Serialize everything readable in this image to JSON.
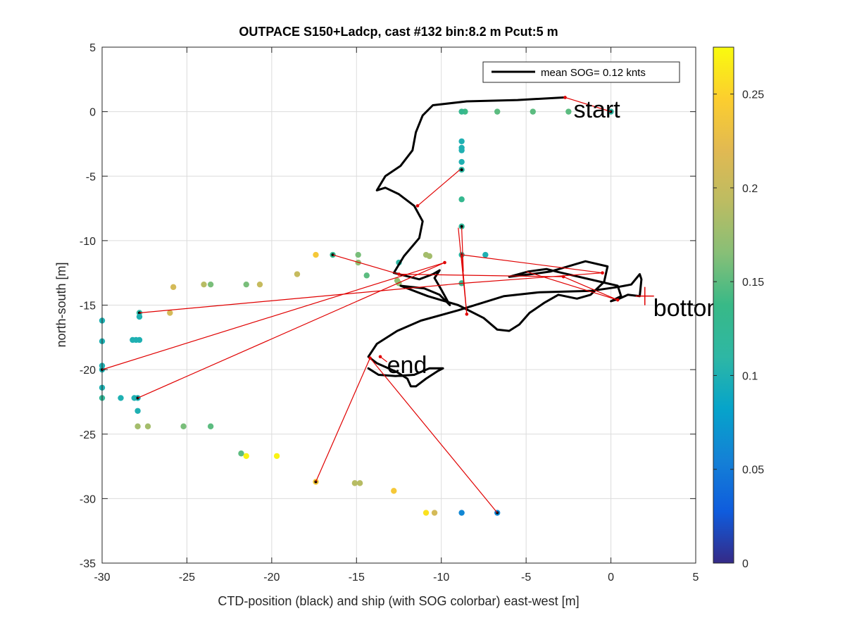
{
  "chart_data": {
    "type": "scatter",
    "title": "OUTPACE S150+Ladcp, cast #132 bin:8.2 m  Pcut:5 m",
    "xlabel": "CTD-position (black) and ship (with SOG colorbar) east-west [m]",
    "ylabel": "north-south [m]",
    "xlim": [
      -30,
      5
    ],
    "ylim": [
      -35,
      5
    ],
    "xticks": [
      "-30",
      "-25",
      "-20",
      "-15",
      "-10",
      "-5",
      "0",
      "5"
    ],
    "yticks": [
      "-35",
      "-30",
      "-25",
      "-20",
      "-15",
      "-10",
      "-5",
      "0",
      "5"
    ],
    "grid": true,
    "legend": {
      "placement": "top-right",
      "label": "mean SOG=  0.12 knts"
    },
    "colorbar": {
      "range": [
        0,
        0.275
      ],
      "ticks": [
        "0",
        "0.05",
        "0.1",
        "0.15",
        "0.2",
        "0.25"
      ],
      "colormap": "parula"
    },
    "annotations": [
      {
        "text": "start",
        "x": -2.2,
        "y": 0.2
      },
      {
        "text": "bottom",
        "x": 2.5,
        "y": -15.2
      },
      {
        "text": "end",
        "x": -13.2,
        "y": -19.6
      }
    ],
    "ctd_track": [
      [
        -2.8,
        1.1
      ],
      [
        -5.5,
        0.9
      ],
      [
        -8.5,
        0.8
      ],
      [
        -10.5,
        0.5
      ],
      [
        -11.1,
        -0.3
      ],
      [
        -11.5,
        -1.6
      ],
      [
        -11.7,
        -3.0
      ],
      [
        -12.4,
        -4.2
      ],
      [
        -13.3,
        -5.0
      ],
      [
        -13.8,
        -6.1
      ],
      [
        -13.3,
        -5.9
      ],
      [
        -12.5,
        -6.4
      ],
      [
        -11.6,
        -7.3
      ],
      [
        -11.1,
        -8.5
      ],
      [
        -11.3,
        -9.8
      ],
      [
        -12.2,
        -11.2
      ],
      [
        -12.8,
        -12.5
      ],
      [
        -11.3,
        -13.0
      ],
      [
        -10.5,
        -12.6
      ],
      [
        -10.1,
        -12.3
      ],
      [
        -10.4,
        -12.9
      ],
      [
        -10.0,
        -13.8
      ],
      [
        -9.5,
        -15.0
      ],
      [
        -10.1,
        -14.2
      ],
      [
        -11.0,
        -13.7
      ],
      [
        -12.4,
        -13.5
      ],
      [
        -10.8,
        -14.3
      ],
      [
        -9.0,
        -15.0
      ],
      [
        -7.5,
        -16.0
      ],
      [
        -6.7,
        -16.9
      ],
      [
        -6.0,
        -17.0
      ],
      [
        -5.4,
        -16.5
      ],
      [
        -4.8,
        -15.6
      ],
      [
        -3.9,
        -14.8
      ],
      [
        -3.1,
        -14.2
      ],
      [
        -2.0,
        -14.5
      ],
      [
        -1.2,
        -14.2
      ],
      [
        -0.4,
        -13.2
      ],
      [
        -0.2,
        -12.0
      ],
      [
        -1.5,
        -11.6
      ],
      [
        -2.8,
        -12.1
      ],
      [
        -3.6,
        -12.4
      ],
      [
        -4.7,
        -12.6
      ],
      [
        -6.0,
        -12.8
      ],
      [
        -4.9,
        -12.4
      ],
      [
        -3.8,
        -12.2
      ],
      [
        -3.2,
        -12.4
      ],
      [
        0.4,
        -13.5
      ],
      [
        0.6,
        -14.3
      ],
      [
        0.0,
        -14.7
      ],
      [
        0.5,
        -14.5
      ],
      [
        1.0,
        -14.2
      ],
      [
        1.7,
        -14.3
      ],
      [
        1.8,
        -13.0
      ],
      [
        1.7,
        -12.6
      ],
      [
        1.2,
        -13.4
      ],
      [
        0.4,
        -13.6
      ],
      [
        -1.2,
        -13.9
      ],
      [
        -4.2,
        -14.0
      ],
      [
        -6.3,
        -14.3
      ],
      [
        -9.0,
        -15.4
      ],
      [
        -11.2,
        -16.2
      ],
      [
        -12.6,
        -17.0
      ],
      [
        -13.8,
        -18.0
      ],
      [
        -14.3,
        -19.0
      ],
      [
        -13.8,
        -19.5
      ],
      [
        -12.6,
        -20.2
      ],
      [
        -12.0,
        -20.7
      ],
      [
        -11.8,
        -21.3
      ],
      [
        -11.5,
        -21.3
      ],
      [
        -10.9,
        -20.7
      ],
      [
        -10.2,
        -20.1
      ],
      [
        -9.9,
        -19.9
      ],
      [
        -10.7,
        -19.9
      ],
      [
        -11.6,
        -20.4
      ],
      [
        -12.7,
        -20.5
      ],
      [
        -13.7,
        -20.4
      ],
      [
        -14.3,
        -19.9
      ]
    ],
    "red_segments": [
      [
        [
          -2.7,
          1.1
        ],
        [
          0.0,
          0.0
        ]
      ],
      [
        [
          -8.9,
          -4.5
        ],
        [
          -11.4,
          -7.3
        ]
      ],
      [
        [
          -8.8,
          -9.0
        ],
        [
          -8.7,
          -12.4
        ]
      ],
      [
        [
          -16.4,
          -11.1
        ],
        [
          -12.5,
          -12.6
        ]
      ],
      [
        [
          -12.5,
          -12.6
        ],
        [
          -2.8,
          -12.8
        ]
      ],
      [
        [
          -2.8,
          -12.8
        ],
        [
          0.4,
          -14.6
        ]
      ],
      [
        [
          0.4,
          -14.6
        ],
        [
          -5.0,
          -12.4
        ]
      ],
      [
        [
          -27.8,
          -15.6
        ],
        [
          -8.7,
          -13.3
        ]
      ],
      [
        [
          -8.7,
          -13.3
        ],
        [
          -0.5,
          -12.5
        ]
      ],
      [
        [
          -0.5,
          -12.5
        ],
        [
          -8.8,
          -11.1
        ]
      ],
      [
        [
          -8.8,
          -11.1
        ],
        [
          -8.5,
          -15.7
        ]
      ],
      [
        [
          -8.5,
          -15.7
        ],
        [
          -9.0,
          -9.0
        ]
      ],
      [
        [
          -30.0,
          -20.0
        ],
        [
          -9.8,
          -11.7
        ]
      ],
      [
        [
          -9.8,
          -11.7
        ],
        [
          -27.9,
          -22.2
        ]
      ],
      [
        [
          -17.4,
          -28.7
        ],
        [
          -14.2,
          -19.1
        ]
      ],
      [
        [
          -14.2,
          -19.1
        ],
        [
          -6.7,
          -31.1
        ]
      ],
      [
        [
          -13.6,
          -19.0
        ],
        [
          -13.2,
          -19.4
        ]
      ]
    ],
    "red_markers": [
      [
        -2.7,
        1.1
      ],
      [
        -11.4,
        -7.3
      ],
      [
        -12.5,
        -12.6
      ],
      [
        -2.8,
        -12.8
      ],
      [
        -0.5,
        -12.5
      ],
      [
        0.4,
        -14.6
      ],
      [
        -8.5,
        -15.7
      ],
      [
        -9.8,
        -11.7
      ],
      [
        -14.2,
        -19.1
      ],
      [
        -13.6,
        -19.0
      ]
    ],
    "bottom_cross": [
      2.0,
      -14.3
    ],
    "ship_points": [
      {
        "x": 0.0,
        "y": 0.0,
        "sog": 0.11,
        "black": true
      },
      {
        "x": -2.5,
        "y": 0.0,
        "sog": 0.15
      },
      {
        "x": -4.6,
        "y": 0.0,
        "sog": 0.15
      },
      {
        "x": -6.7,
        "y": 0.0,
        "sog": 0.15
      },
      {
        "x": -8.6,
        "y": 0.0,
        "sog": 0.14
      },
      {
        "x": -8.8,
        "y": 0.0,
        "sog": 0.13
      },
      {
        "x": -8.8,
        "y": -2.3,
        "sog": 0.1
      },
      {
        "x": -8.8,
        "y": -2.8,
        "sog": 0.1
      },
      {
        "x": -8.8,
        "y": -3.0,
        "sog": 0.1
      },
      {
        "x": -8.8,
        "y": -3.9,
        "sog": 0.1
      },
      {
        "x": -8.8,
        "y": -4.5,
        "sog": 0.11,
        "black": true
      },
      {
        "x": -8.8,
        "y": -6.8,
        "sog": 0.13
      },
      {
        "x": -8.8,
        "y": -8.9,
        "sog": 0.12,
        "black": true
      },
      {
        "x": -8.8,
        "y": -11.1,
        "sog": 0.11,
        "black": true
      },
      {
        "x": -7.4,
        "y": -11.1,
        "sog": 0.1
      },
      {
        "x": -10.9,
        "y": -11.1,
        "sog": 0.18
      },
      {
        "x": -10.7,
        "y": -11.2,
        "sog": 0.18
      },
      {
        "x": -12.5,
        "y": -11.7,
        "sog": 0.11
      },
      {
        "x": -14.9,
        "y": -11.1,
        "sog": 0.16
      },
      {
        "x": -14.9,
        "y": -11.7,
        "sog": 0.17
      },
      {
        "x": -17.4,
        "y": -11.1,
        "sog": 0.24
      },
      {
        "x": -16.4,
        "y": -11.1,
        "sog": 0.13,
        "black": true
      },
      {
        "x": -14.4,
        "y": -12.7,
        "sog": 0.15
      },
      {
        "x": -12.6,
        "y": -13.1,
        "sog": 0.17
      },
      {
        "x": -12.5,
        "y": -13.3,
        "sog": 0.17
      },
      {
        "x": -8.8,
        "y": -13.3,
        "sog": 0.13
      },
      {
        "x": -18.5,
        "y": -12.6,
        "sog": 0.2
      },
      {
        "x": -20.7,
        "y": -13.4,
        "sog": 0.2
      },
      {
        "x": -21.5,
        "y": -13.4,
        "sog": 0.16
      },
      {
        "x": -23.6,
        "y": -13.4,
        "sog": 0.16
      },
      {
        "x": -24.0,
        "y": -13.4,
        "sog": 0.19
      },
      {
        "x": -25.8,
        "y": -13.6,
        "sog": 0.21
      },
      {
        "x": -26.0,
        "y": -15.6,
        "sog": 0.21
      },
      {
        "x": -27.8,
        "y": -15.6,
        "sog": 0.11,
        "black": true
      },
      {
        "x": -27.8,
        "y": -15.9,
        "sog": 0.1
      },
      {
        "x": -30.0,
        "y": -16.2,
        "sog": 0.1
      },
      {
        "x": -28.2,
        "y": -17.7,
        "sog": 0.1
      },
      {
        "x": -28.0,
        "y": -17.7,
        "sog": 0.1
      },
      {
        "x": -27.8,
        "y": -17.7,
        "sog": 0.1
      },
      {
        "x": -30.0,
        "y": -17.8,
        "sog": 0.1
      },
      {
        "x": -30.0,
        "y": -19.7,
        "sog": 0.1
      },
      {
        "x": -30.0,
        "y": -20.0,
        "sog": 0.1,
        "black": true
      },
      {
        "x": -30.0,
        "y": -21.4,
        "sog": 0.1
      },
      {
        "x": -30.0,
        "y": -22.2,
        "sog": 0.12
      },
      {
        "x": -28.9,
        "y": -22.2,
        "sog": 0.1
      },
      {
        "x": -28.1,
        "y": -22.2,
        "sog": 0.1
      },
      {
        "x": -27.9,
        "y": -22.2,
        "sog": 0.1,
        "black": true
      },
      {
        "x": -27.9,
        "y": -23.2,
        "sog": 0.1
      },
      {
        "x": -27.9,
        "y": -24.4,
        "sog": 0.18
      },
      {
        "x": -27.3,
        "y": -24.4,
        "sog": 0.18
      },
      {
        "x": -25.2,
        "y": -24.4,
        "sog": 0.16
      },
      {
        "x": -23.6,
        "y": -24.4,
        "sog": 0.15
      },
      {
        "x": -21.8,
        "y": -26.5,
        "sog": 0.15
      },
      {
        "x": -21.5,
        "y": -26.7,
        "sog": 0.27
      },
      {
        "x": -19.7,
        "y": -26.7,
        "sog": 0.27
      },
      {
        "x": -17.4,
        "y": -28.7,
        "sog": 0.24,
        "black": true
      },
      {
        "x": -15.1,
        "y": -28.8,
        "sog": 0.19
      },
      {
        "x": -14.8,
        "y": -28.8,
        "sog": 0.19
      },
      {
        "x": -12.8,
        "y": -29.4,
        "sog": 0.24
      },
      {
        "x": -10.9,
        "y": -31.1,
        "sog": 0.26
      },
      {
        "x": -10.4,
        "y": -31.1,
        "sog": 0.21
      },
      {
        "x": -8.8,
        "y": -31.1,
        "sog": 0.06
      },
      {
        "x": -6.7,
        "y": -31.1,
        "sog": 0.06,
        "black": true
      }
    ]
  }
}
